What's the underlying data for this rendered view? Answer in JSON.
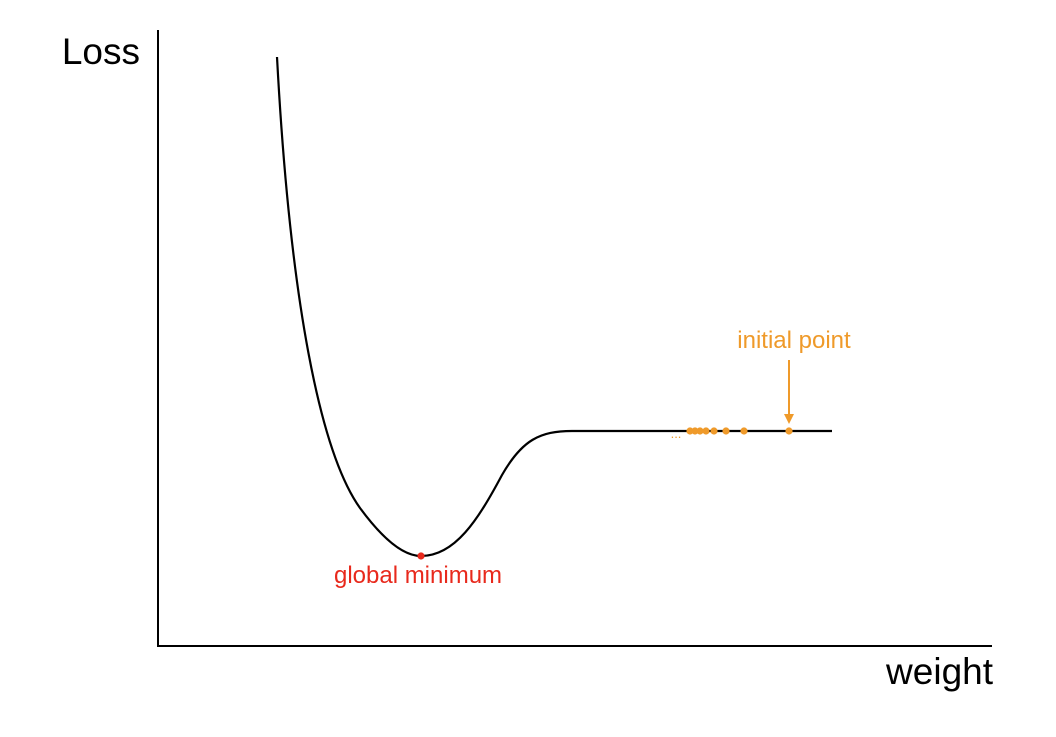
{
  "axes": {
    "y_label": "Loss",
    "x_label": "weight"
  },
  "annotations": {
    "global_minimum": "global minimum",
    "initial_point": "initial point",
    "ellipsis": "..."
  },
  "colors": {
    "curve": "#000000",
    "axis": "#000000",
    "minimum": "#e8291c",
    "steps": "#ef9a2a"
  },
  "descent_steps": {
    "count": 8
  }
}
